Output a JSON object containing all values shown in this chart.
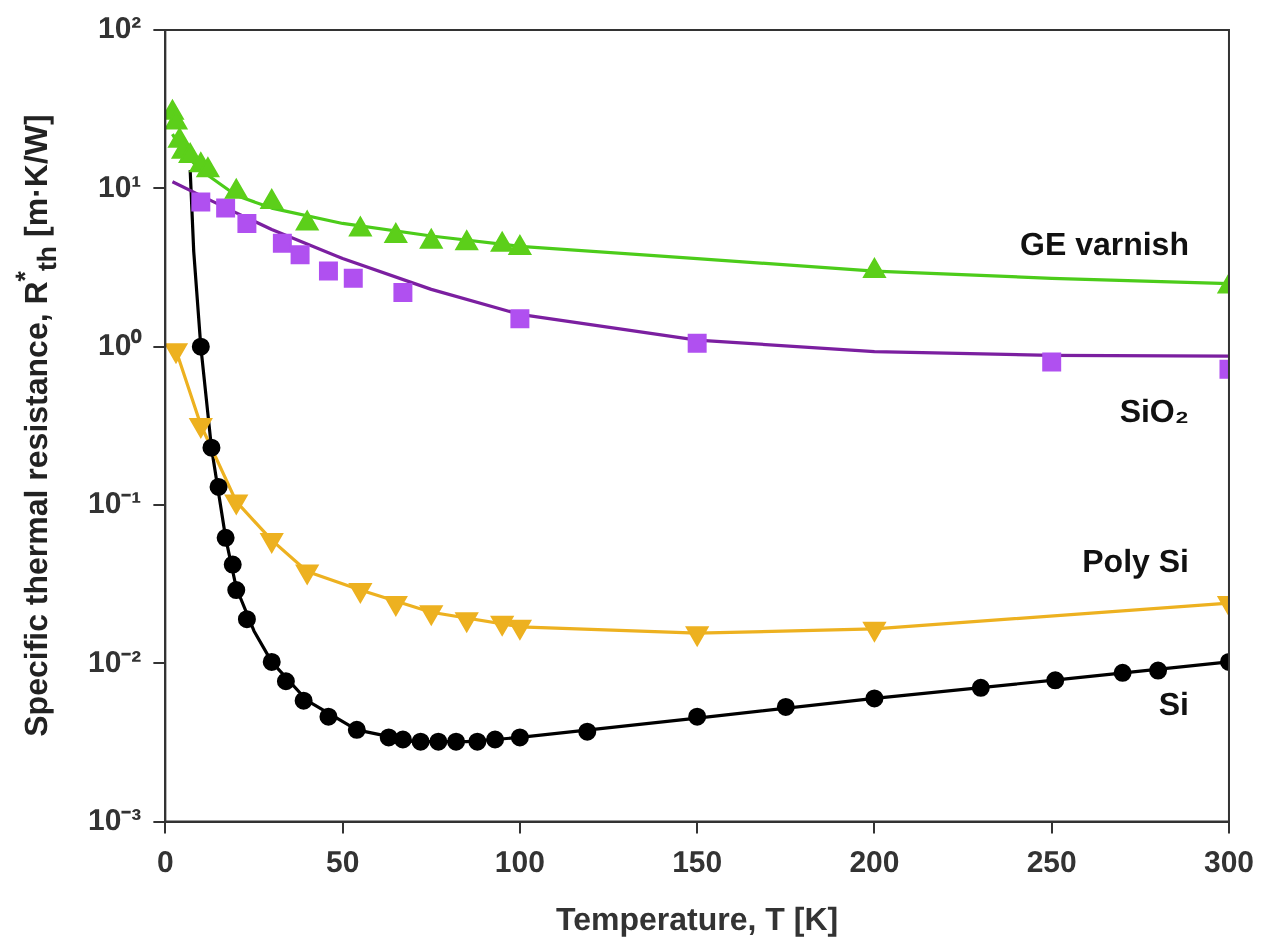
{
  "chart_data": {
    "type": "scatter",
    "xlabel": "Temperature, T [K]",
    "ylabel": "Specific thermal resistance, R$^{*}$$_{th}$ [m·K/W]",
    "log": "y",
    "grid": false,
    "legend": false,
    "xlim": [
      0,
      300
    ],
    "xticks": [
      0,
      50,
      100,
      150,
      200,
      250,
      300
    ],
    "ylim": [
      0.001,
      100
    ],
    "yticks": [
      {
        "value": 0.001,
        "label": "10⁻³"
      },
      {
        "value": 0.01,
        "label": "10⁻²"
      },
      {
        "value": 0.1,
        "label": "10⁻¹"
      },
      {
        "value": 1,
        "label": "10⁰"
      },
      {
        "value": 10,
        "label": "10¹"
      },
      {
        "value": 100,
        "label": "10²"
      }
    ],
    "series": [
      {
        "type": "line",
        "marker": "none",
        "color": "#4ccc1a",
        "x": [
          2,
          5,
          10,
          20,
          30,
          50,
          75,
          100,
          150,
          200,
          250,
          300
        ],
        "values": [
          22,
          17,
          13,
          9,
          7.5,
          6,
          5,
          4.3,
          3.6,
          3.0,
          2.7,
          2.5
        ]
      },
      {
        "type": "line",
        "marker": "none",
        "color": "#7b1fa0",
        "x": [
          2,
          10,
          20,
          30,
          50,
          75,
          100,
          150,
          200,
          250,
          300
        ],
        "values": [
          11,
          9,
          7,
          5.5,
          3.6,
          2.3,
          1.6,
          1.1,
          0.93,
          0.88,
          0.87
        ]
      },
      {
        "type": "line",
        "marker": "none",
        "color": "#edb120",
        "x": [
          3,
          10,
          20,
          30,
          40,
          55,
          75,
          100,
          150,
          200,
          300
        ],
        "values": [
          0.95,
          0.32,
          0.105,
          0.06,
          0.038,
          0.029,
          0.021,
          0.017,
          0.0155,
          0.0165,
          0.024
        ]
      },
      {
        "type": "line",
        "marker": "none",
        "color": "#000000",
        "x": [
          7,
          8,
          10,
          13,
          17,
          20,
          25,
          30,
          40,
          54,
          70,
          85,
          100,
          150,
          200,
          250,
          300
        ],
        "values": [
          13,
          4,
          1.0,
          0.23,
          0.062,
          0.03,
          0.016,
          0.0102,
          0.0058,
          0.0038,
          0.0032,
          0.0032,
          0.0034,
          0.0045,
          0.006,
          0.0078,
          0.0102
        ]
      },
      {
        "name": "GE varnish",
        "type": "scatter",
        "marker": "triangle",
        "color": "#5ccf1a",
        "x": [
          2,
          3,
          4,
          5,
          7,
          9,
          10,
          12,
          20,
          30,
          40,
          55,
          65,
          75,
          85,
          95,
          100,
          200,
          300
        ],
        "values": [
          30,
          26,
          20,
          17,
          16,
          null,
          14,
          13,
          9.5,
          8.2,
          6,
          5.5,
          5,
          4.6,
          4.5,
          4.4,
          4.2,
          3.0,
          2.4
        ]
      },
      {
        "name": "SiO₂",
        "type": "scatter",
        "marker": "square",
        "color": "#b050f0",
        "x": [
          10,
          17,
          23,
          33,
          38,
          46,
          53,
          67,
          100,
          150,
          250,
          300
        ],
        "values": [
          8.2,
          7.5,
          6,
          4.5,
          3.8,
          3.0,
          2.7,
          2.2,
          1.5,
          1.05,
          0.8,
          0.72
        ]
      },
      {
        "name": "Poly Si",
        "type": "scatter",
        "marker": "triangle_down",
        "color": "#edb120",
        "x": [
          3,
          10,
          20,
          30,
          40,
          55,
          65,
          75,
          85,
          95,
          100,
          150,
          200,
          300
        ],
        "values": [
          0.95,
          0.32,
          0.105,
          0.06,
          0.038,
          0.029,
          0.024,
          0.021,
          0.019,
          0.018,
          0.017,
          0.0155,
          0.0165,
          0.024
        ]
      },
      {
        "name": "Si",
        "type": "scatter",
        "marker": "circle",
        "color": "#000000",
        "x": [
          10,
          13,
          15,
          17,
          19,
          20,
          23,
          30,
          34,
          39,
          46,
          54,
          63,
          67,
          72,
          77,
          82,
          88,
          93,
          100,
          119,
          150,
          175,
          200,
          230,
          251,
          270,
          280,
          300
        ],
        "values": [
          1.0,
          0.23,
          0.13,
          0.062,
          0.042,
          0.029,
          0.019,
          0.0102,
          0.0077,
          0.0058,
          0.0046,
          0.0038,
          0.0034,
          0.0033,
          0.0032,
          0.0032,
          0.0032,
          0.0032,
          0.0033,
          0.0034,
          0.0037,
          0.0046,
          0.0053,
          0.006,
          0.007,
          0.0078,
          0.0087,
          0.009,
          0.0102
        ]
      }
    ]
  }
}
